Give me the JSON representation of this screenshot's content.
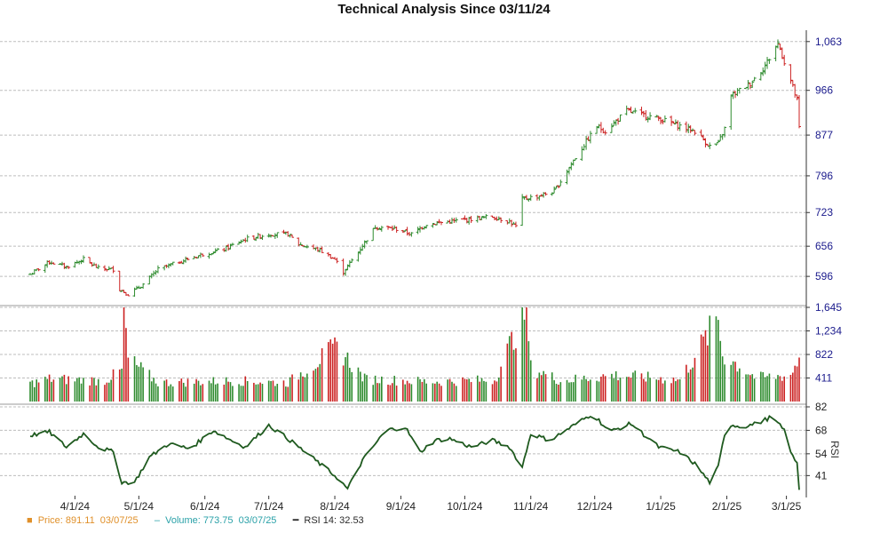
{
  "title": "Technical Analysis Since 03/11/24",
  "colors": {
    "up": "#2e8b2e",
    "down": "#cc2222",
    "rsi": "#1f5a1f",
    "priceAxis": "#1a1a8c",
    "grid": "#bdbdbd"
  },
  "legend": {
    "price_label": "Price: 891.11",
    "price_date": "03/07/25",
    "volume_label": "Volume: 773.75",
    "volume_date": "03/07/25",
    "rsi_label": "RSI 14: 32.53"
  },
  "chart_data": {
    "type": "candlestick",
    "x_tick_labels": [
      "4/1/24",
      "5/1/24",
      "6/1/24",
      "7/1/24",
      "8/1/24",
      "9/1/24",
      "10/1/24",
      "11/1/24",
      "12/1/24",
      "1/1/25",
      "2/1/25",
      "3/1/25"
    ],
    "price_ticks": [
      1063,
      966,
      877,
      796,
      723,
      656,
      596
    ],
    "volume_ticks": [
      1645,
      1234,
      822,
      411
    ],
    "rsi_ticks": [
      82,
      68,
      54,
      41
    ],
    "rsi_axis_label": "RSI",
    "x_range": [
      "03/11/24",
      "03/07/25"
    ],
    "price_range": [
      545,
      1075
    ],
    "volume_range": [
      0,
      1645
    ],
    "rsi_range": [
      29,
      82
    ],
    "price_keypoints": [
      [
        "03/11/24",
        600
      ],
      [
        "03/20/24",
        625
      ],
      [
        "03/28/24",
        615
      ],
      [
        "04/05/24",
        630
      ],
      [
        "04/12/24",
        612
      ],
      [
        "04/19/24",
        610
      ],
      [
        "04/22/24",
        570
      ],
      [
        "04/26/24",
        560
      ],
      [
        "05/03/24",
        580
      ],
      [
        "05/10/24",
        610
      ],
      [
        "05/20/24",
        625
      ],
      [
        "05/31/24",
        640
      ],
      [
        "06/10/24",
        650
      ],
      [
        "06/20/24",
        670
      ],
      [
        "07/01/24",
        680
      ],
      [
        "07/10/24",
        680
      ],
      [
        "07/15/24",
        660
      ],
      [
        "07/25/24",
        648
      ],
      [
        "08/01/24",
        630
      ],
      [
        "08/05/24",
        605
      ],
      [
        "08/12/24",
        645
      ],
      [
        "08/20/24",
        695
      ],
      [
        "08/30/24",
        690
      ],
      [
        "09/06/24",
        680
      ],
      [
        "09/13/24",
        700
      ],
      [
        "09/24/24",
        705
      ],
      [
        "10/04/24",
        710
      ],
      [
        "10/14/24",
        715
      ],
      [
        "10/22/24",
        705
      ],
      [
        "10/25/24",
        695
      ],
      [
        "10/28/24",
        750
      ],
      [
        "11/04/24",
        755
      ],
      [
        "11/12/24",
        765
      ],
      [
        "11/20/24",
        820
      ],
      [
        "12/02/24",
        895
      ],
      [
        "12/06/24",
        885
      ],
      [
        "12/16/24",
        925
      ],
      [
        "12/31/24",
        910
      ],
      [
        "01/10/25",
        895
      ],
      [
        "01/17/25",
        885
      ],
      [
        "01/24/25",
        855
      ],
      [
        "01/28/25",
        860
      ],
      [
        "01/31/25",
        890
      ],
      [
        "02/03/25",
        955
      ],
      [
        "02/12/25",
        980
      ],
      [
        "02/19/25",
        1015
      ],
      [
        "02/25/25",
        1060
      ],
      [
        "03/03/25",
        985
      ],
      [
        "03/06/25",
        945
      ],
      [
        "03/07/25",
        891
      ]
    ],
    "volume_keypoints": [
      [
        "03/11/24",
        0.19
      ],
      [
        "03/20/24",
        0.24
      ],
      [
        "04/15/24",
        0.22
      ],
      [
        "04/23/24",
        0.33
      ],
      [
        "04/24/24",
        1.0
      ],
      [
        "04/26/24",
        0.45
      ],
      [
        "05/10/24",
        0.2
      ],
      [
        "06/15/24",
        0.22
      ],
      [
        "07/10/24",
        0.2
      ],
      [
        "08/02/24",
        0.58
      ],
      [
        "08/15/24",
        0.24
      ],
      [
        "09/15/24",
        0.21
      ],
      [
        "10/15/24",
        0.23
      ],
      [
        "10/30/24",
        1.0
      ],
      [
        "11/01/24",
        0.36
      ],
      [
        "11/15/24",
        0.22
      ],
      [
        "12/10/24",
        0.28
      ],
      [
        "01/10/25",
        0.23
      ],
      [
        "01/28/25",
        0.88
      ],
      [
        "01/30/25",
        0.5
      ],
      [
        "02/15/25",
        0.25
      ],
      [
        "03/03/25",
        0.28
      ],
      [
        "03/07/25",
        0.47
      ]
    ],
    "rsi_keypoints": [
      [
        "03/11/24",
        65
      ],
      [
        "03/20/24",
        67
      ],
      [
        "03/28/24",
        58
      ],
      [
        "04/05/24",
        66
      ],
      [
        "04/12/24",
        58
      ],
      [
        "04/19/24",
        55
      ],
      [
        "04/23/24",
        37
      ],
      [
        "04/29/24",
        37
      ],
      [
        "05/06/24",
        52
      ],
      [
        "05/15/24",
        60
      ],
      [
        "05/25/24",
        57
      ],
      [
        "06/05/24",
        68
      ],
      [
        "06/12/24",
        63
      ],
      [
        "06/20/24",
        58
      ],
      [
        "07/01/24",
        71
      ],
      [
        "07/10/24",
        63
      ],
      [
        "07/18/24",
        55
      ],
      [
        "07/25/24",
        48
      ],
      [
        "08/02/24",
        40
      ],
      [
        "08/07/24",
        33
      ],
      [
        "08/14/24",
        50
      ],
      [
        "08/25/24",
        68
      ],
      [
        "09/03/24",
        70
      ],
      [
        "09/10/24",
        55
      ],
      [
        "09/17/24",
        62
      ],
      [
        "09/24/24",
        63
      ],
      [
        "10/04/24",
        58
      ],
      [
        "10/14/24",
        62
      ],
      [
        "10/22/24",
        58
      ],
      [
        "10/28/24",
        46
      ],
      [
        "11/01/24",
        66
      ],
      [
        "11/10/24",
        62
      ],
      [
        "11/20/24",
        70
      ],
      [
        "11/30/24",
        78
      ],
      [
        "12/08/24",
        67
      ],
      [
        "12/18/24",
        72
      ],
      [
        "12/31/24",
        58
      ],
      [
        "01/10/25",
        55
      ],
      [
        "01/17/25",
        48
      ],
      [
        "01/24/25",
        37
      ],
      [
        "01/28/25",
        46
      ],
      [
        "02/01/25",
        72
      ],
      [
        "02/08/25",
        70
      ],
      [
        "02/15/25",
        72
      ],
      [
        "02/22/25",
        76
      ],
      [
        "02/28/25",
        68
      ],
      [
        "03/04/25",
        52
      ],
      [
        "03/06/25",
        48
      ],
      [
        "03/07/25",
        33
      ]
    ]
  }
}
